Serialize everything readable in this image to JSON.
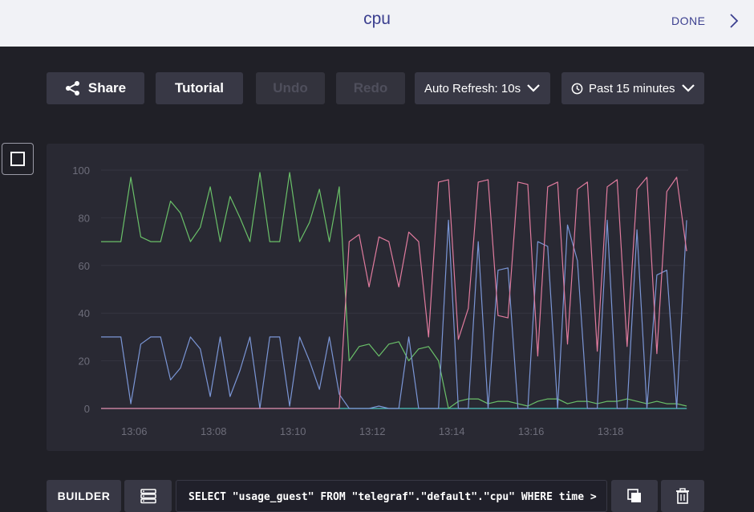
{
  "header": {
    "title": "cpu",
    "done_label": "DONE"
  },
  "toolbar": {
    "share_label": "Share",
    "tutorial_label": "Tutorial",
    "undo_label": "Undo",
    "redo_label": "Redo",
    "auto_refresh_label": "Auto Refresh: 10s",
    "time_range_label": "Past 15 minutes"
  },
  "query": {
    "builder_label": "BUILDER",
    "text": "SELECT \"usage_guest\" FROM \"telegraf\".\"default\".\"cpu\" WHERE time >"
  },
  "icons": {
    "share": "share-icon",
    "clock": "clock-icon",
    "chevron": "chevron-down-icon",
    "done_chevron": "chevron-right-icon",
    "layout": "layout-toggle-icon",
    "list": "list-icon",
    "copy": "copy-icon",
    "trash": "trash-icon"
  },
  "colors": {
    "header_bg": "#f1f2f6",
    "title": "#3b3f8f",
    "page_bg": "#202027",
    "button_bg": "#383845",
    "panel_bg": "#292933",
    "series_green": "#6ac069",
    "series_blue": "#7b96d6",
    "series_pink": "#e07b9e",
    "series_teal": "#4fc4c0"
  },
  "chart_data": {
    "type": "line",
    "title": "",
    "xlabel": "",
    "ylabel": "",
    "ylim": [
      0,
      100
    ],
    "yticks": [
      0,
      20,
      40,
      60,
      80,
      100
    ],
    "xticks": [
      "13:06",
      "13:08",
      "13:10",
      "13:12",
      "13:14",
      "13:16",
      "13:18"
    ],
    "x_start_time": "13:05:10",
    "x_end_time": "13:19:55",
    "points_per_series": 60,
    "grid": true,
    "series": [
      {
        "color": "#6ac069",
        "values": [
          70,
          70,
          70,
          97,
          72,
          70,
          70,
          87,
          82,
          70,
          76,
          93,
          70,
          89,
          80,
          70,
          99,
          70,
          70,
          99,
          70,
          78,
          92,
          70,
          93,
          20,
          26,
          27,
          22,
          27,
          28,
          20,
          25,
          26,
          20,
          0,
          3,
          4,
          4,
          2,
          3,
          3,
          2,
          1,
          3,
          4,
          4,
          2,
          3,
          3,
          2,
          3,
          3,
          4,
          3,
          2,
          3,
          2,
          2,
          1
        ]
      },
      {
        "color": "#7b96d6",
        "values": [
          30,
          30,
          30,
          2,
          27,
          30,
          30,
          12,
          17,
          30,
          25,
          5,
          30,
          5,
          16,
          30,
          0,
          30,
          30,
          1,
          30,
          20,
          8,
          30,
          6,
          0,
          0,
          0,
          1,
          0,
          0,
          30,
          0,
          0,
          0,
          79,
          0,
          0,
          70,
          0,
          58,
          59,
          0,
          0,
          70,
          68,
          0,
          77,
          62,
          0,
          0,
          79,
          0,
          0,
          75,
          0,
          56,
          58,
          0,
          79
        ]
      },
      {
        "color": "#e07b9e",
        "values": [
          0,
          0,
          0,
          0,
          0,
          0,
          0,
          0,
          0,
          0,
          0,
          0,
          0,
          0,
          0,
          0,
          0,
          0,
          0,
          0,
          0,
          0,
          0,
          0,
          0,
          70,
          73,
          51,
          72,
          70,
          51,
          74,
          70,
          30,
          95,
          96,
          29,
          42,
          95,
          96,
          39,
          38,
          95,
          94,
          22,
          93,
          95,
          27,
          92,
          95,
          24,
          93,
          96,
          26,
          92,
          97,
          23,
          91,
          97,
          66
        ]
      },
      {
        "color": "#4fc4c0",
        "values": [
          0,
          0,
          0,
          0,
          0,
          0,
          0,
          0,
          0,
          0,
          0,
          0,
          0,
          0,
          0,
          0,
          0,
          0,
          0,
          0,
          0,
          0,
          0,
          0,
          0,
          0,
          0,
          0,
          0,
          0,
          0,
          0,
          0,
          0,
          0,
          0,
          0,
          0,
          0,
          0,
          0,
          0,
          0,
          0,
          0,
          0,
          0,
          0,
          0,
          0,
          0,
          0,
          0,
          0,
          0,
          0,
          0,
          0,
          0,
          0
        ]
      }
    ]
  }
}
